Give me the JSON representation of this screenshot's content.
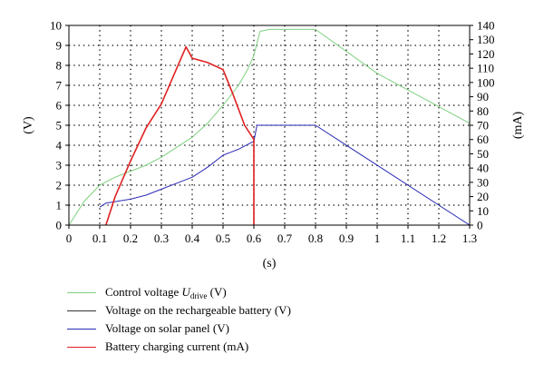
{
  "chart_data": {
    "type": "line",
    "xlabel": "(s)",
    "ylabel_left": "(V)",
    "ylabel_right": "(mA)",
    "xlim": [
      0,
      1.3
    ],
    "ylim_left": [
      0,
      10
    ],
    "ylim_right": [
      0,
      140
    ],
    "x_ticks": [
      0,
      0.1,
      0.2,
      0.3,
      0.4,
      0.5,
      0.6,
      0.7,
      0.8,
      0.9,
      1,
      1.1,
      1.2,
      1.3
    ],
    "y_ticks_left": [
      0,
      1,
      2,
      3,
      4,
      5,
      6,
      7,
      8,
      9,
      10
    ],
    "y_ticks_right": [
      0,
      10,
      20,
      30,
      40,
      50,
      60,
      70,
      80,
      90,
      100,
      110,
      120,
      130,
      140
    ],
    "grid": "dotted",
    "legend_position": "bottom",
    "series": [
      {
        "name": "Control voltage Udrive (V)",
        "label_main": "Control voltage ",
        "label_italic": "U",
        "label_sub": "drive",
        "label_tail": " (V)",
        "color": "#7fd07f",
        "axis": "left",
        "points": [
          [
            0,
            0
          ],
          [
            0.05,
            1.2
          ],
          [
            0.1,
            2.0
          ],
          [
            0.15,
            2.4
          ],
          [
            0.2,
            2.7
          ],
          [
            0.25,
            3.0
          ],
          [
            0.3,
            3.4
          ],
          [
            0.35,
            3.9
          ],
          [
            0.4,
            4.4
          ],
          [
            0.45,
            5.1
          ],
          [
            0.5,
            6.0
          ],
          [
            0.55,
            7.0
          ],
          [
            0.58,
            7.8
          ],
          [
            0.6,
            8.5
          ],
          [
            0.62,
            9.7
          ],
          [
            0.65,
            9.8
          ],
          [
            0.8,
            9.8
          ],
          [
            1.0,
            7.6
          ],
          [
            1.3,
            5.1
          ]
        ]
      },
      {
        "name": "Voltage on the rechargeable battery (V)",
        "color": "#333333",
        "axis": "left",
        "points": []
      },
      {
        "name": "Voltage on solar panel (V)",
        "color": "#2a2ab4",
        "axis": "left",
        "points": [
          [
            0.1,
            0.9
          ],
          [
            0.12,
            1.1
          ],
          [
            0.2,
            1.3
          ],
          [
            0.25,
            1.5
          ],
          [
            0.3,
            1.8
          ],
          [
            0.35,
            2.1
          ],
          [
            0.4,
            2.4
          ],
          [
            0.45,
            2.9
          ],
          [
            0.5,
            3.5
          ],
          [
            0.55,
            3.8
          ],
          [
            0.6,
            4.2
          ],
          [
            0.61,
            5.0
          ],
          [
            0.8,
            5.0
          ],
          [
            1.3,
            0
          ]
        ]
      },
      {
        "name": "Battery charging current (mA)",
        "color": "#e02020",
        "axis": "right",
        "points": [
          [
            0.12,
            0
          ],
          [
            0.15,
            20
          ],
          [
            0.2,
            45
          ],
          [
            0.25,
            68
          ],
          [
            0.3,
            85
          ],
          [
            0.35,
            110
          ],
          [
            0.38,
            125
          ],
          [
            0.4,
            117
          ],
          [
            0.45,
            114
          ],
          [
            0.5,
            109
          ],
          [
            0.53,
            93
          ],
          [
            0.57,
            70
          ],
          [
            0.6,
            60
          ],
          [
            0.6,
            0
          ]
        ]
      }
    ]
  }
}
